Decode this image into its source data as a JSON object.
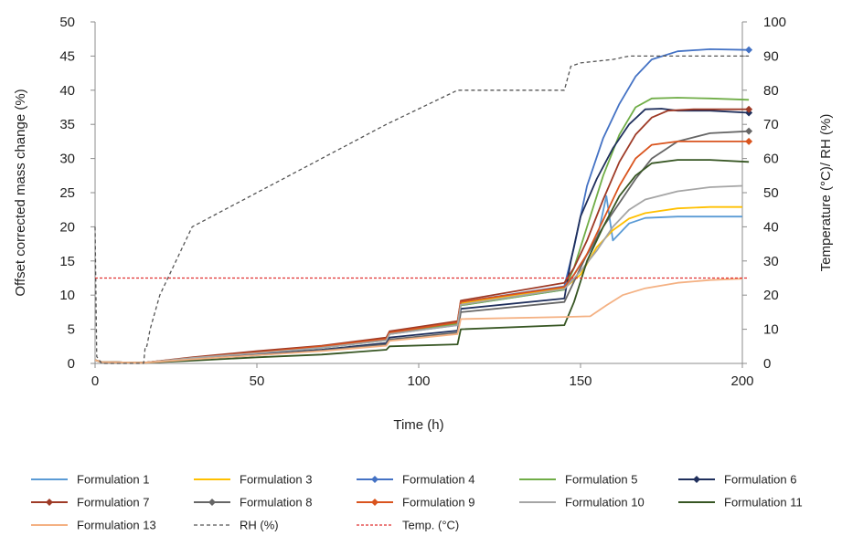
{
  "chart_data": {
    "type": "line",
    "xlabel": "Time (h)",
    "ylabel": "Offset corrected mass change (%)",
    "y2label": "Temperature (°C)/ RH (%)",
    "xlim": [
      0,
      200
    ],
    "ylim": [
      0,
      50
    ],
    "y2lim": [
      0,
      100
    ],
    "x_ticks": [
      0,
      50,
      100,
      150,
      200
    ],
    "y_ticks": [
      0,
      5,
      10,
      15,
      20,
      25,
      30,
      35,
      40,
      45,
      50
    ],
    "y2_ticks": [
      0,
      10,
      20,
      30,
      40,
      50,
      60,
      70,
      80,
      90,
      100
    ],
    "grid": false,
    "legend_position": "bottom",
    "series": [
      {
        "name": "Formulation 1",
        "color": "#5b9bd5",
        "marker": "none",
        "axis": "left",
        "x": [
          0,
          2,
          15,
          30,
          50,
          70,
          90,
          91,
          112,
          113,
          145,
          150,
          155,
          158,
          160,
          165,
          170,
          180,
          190,
          200
        ],
        "y": [
          0.5,
          0.2,
          0.1,
          0.8,
          1.5,
          2.3,
          3.4,
          4.3,
          5.6,
          8.5,
          10.8,
          14.5,
          18.0,
          24.5,
          18.0,
          20.5,
          21.3,
          21.5,
          21.5,
          21.5
        ]
      },
      {
        "name": "Formulation 3",
        "color": "#ffc000",
        "marker": "none",
        "axis": "left",
        "x": [
          0,
          2,
          15,
          30,
          50,
          70,
          90,
          91,
          112,
          113,
          145,
          150,
          155,
          160,
          165,
          170,
          180,
          190,
          200
        ],
        "y": [
          0.5,
          0.2,
          0.1,
          0.8,
          1.5,
          2.4,
          3.5,
          4.4,
          5.8,
          8.8,
          11.0,
          13.0,
          17.0,
          19.5,
          21.2,
          22.0,
          22.7,
          22.9,
          22.9
        ]
      },
      {
        "name": "Formulation 4",
        "color": "#4472c4",
        "marker": "diamond",
        "axis": "left",
        "x": [
          0,
          2,
          15,
          30,
          50,
          70,
          90,
          91,
          112,
          113,
          145,
          148,
          152,
          157,
          162,
          167,
          172,
          180,
          190,
          202
        ],
        "y": [
          0.5,
          0.2,
          0.1,
          0.8,
          1.6,
          2.5,
          3.6,
          4.5,
          6.0,
          9.0,
          11.3,
          17.0,
          26.0,
          33.0,
          38.0,
          42.0,
          44.5,
          45.7,
          46.0,
          45.9
        ]
      },
      {
        "name": "Formulation 5",
        "color": "#70ad47",
        "marker": "none",
        "axis": "left",
        "x": [
          0,
          2,
          15,
          30,
          50,
          70,
          90,
          91,
          112,
          113,
          145,
          148,
          152,
          157,
          162,
          167,
          172,
          180,
          190,
          202
        ],
        "y": [
          0.5,
          0.2,
          0.1,
          0.8,
          1.5,
          2.3,
          3.4,
          4.3,
          5.8,
          8.5,
          10.8,
          14.0,
          20.0,
          27.5,
          33.5,
          37.5,
          38.8,
          38.9,
          38.8,
          38.6
        ]
      },
      {
        "name": "Formulation 6",
        "color": "#1f2f5c",
        "marker": "diamond",
        "axis": "left",
        "x": [
          0,
          2,
          15,
          30,
          50,
          70,
          90,
          91,
          112,
          113,
          145,
          147,
          150,
          155,
          160,
          165,
          170,
          175,
          180,
          190,
          202
        ],
        "y": [
          0.5,
          0.2,
          0.1,
          0.7,
          1.3,
          2.0,
          3.0,
          3.8,
          4.8,
          8.0,
          9.5,
          15.0,
          21.5,
          27.0,
          31.5,
          35.0,
          37.2,
          37.3,
          37.0,
          37.0,
          36.7
        ]
      },
      {
        "name": "Formulation 7",
        "color": "#9e3a26",
        "marker": "diamond",
        "axis": "left",
        "x": [
          0,
          2,
          15,
          30,
          50,
          70,
          90,
          91,
          112,
          113,
          145,
          148,
          152,
          157,
          162,
          167,
          172,
          177,
          185,
          202
        ],
        "y": [
          0.5,
          0.2,
          0.1,
          0.9,
          1.8,
          2.6,
          3.8,
          4.7,
          6.2,
          9.2,
          11.8,
          14.0,
          18.0,
          24.0,
          29.5,
          33.5,
          36.0,
          37.0,
          37.2,
          37.2
        ]
      },
      {
        "name": "Formulation 8",
        "color": "#666666",
        "marker": "diamond",
        "axis": "left",
        "x": [
          0,
          2,
          15,
          30,
          50,
          70,
          90,
          91,
          112,
          113,
          145,
          148,
          152,
          157,
          162,
          167,
          172,
          180,
          190,
          202
        ],
        "y": [
          0.5,
          0.2,
          0.1,
          0.6,
          1.2,
          1.9,
          2.8,
          3.5,
          4.5,
          7.5,
          9.0,
          12.0,
          16.0,
          20.0,
          23.5,
          27.0,
          30.0,
          32.5,
          33.7,
          34.0
        ]
      },
      {
        "name": "Formulation 9",
        "color": "#d9541e",
        "marker": "diamond",
        "axis": "left",
        "x": [
          0,
          2,
          15,
          30,
          50,
          70,
          90,
          91,
          112,
          113,
          145,
          148,
          152,
          157,
          162,
          167,
          172,
          180,
          190,
          202
        ],
        "y": [
          0.5,
          0.2,
          0.1,
          0.8,
          1.6,
          2.5,
          3.6,
          4.5,
          6.0,
          9.0,
          11.2,
          13.0,
          16.0,
          21.0,
          26.0,
          30.0,
          32.0,
          32.5,
          32.5,
          32.5
        ]
      },
      {
        "name": "Formulation 10",
        "color": "#a5a5a5",
        "marker": "none",
        "axis": "left",
        "x": [
          0,
          2,
          15,
          30,
          50,
          70,
          90,
          91,
          112,
          113,
          145,
          150,
          155,
          160,
          165,
          170,
          180,
          190,
          200
        ],
        "y": [
          0.5,
          0.2,
          0.1,
          0.8,
          1.5,
          2.3,
          3.4,
          4.3,
          5.6,
          8.6,
          10.9,
          13.5,
          16.5,
          20.0,
          22.5,
          24.0,
          25.2,
          25.8,
          26.0
        ]
      },
      {
        "name": "Formulation 11",
        "color": "#375623",
        "marker": "none",
        "axis": "left",
        "x": [
          0,
          2,
          15,
          30,
          50,
          70,
          90,
          91,
          112,
          113,
          145,
          148,
          152,
          157,
          162,
          167,
          172,
          180,
          190,
          202
        ],
        "y": [
          0.5,
          0.2,
          0.1,
          0.4,
          0.9,
          1.3,
          2.0,
          2.5,
          2.8,
          5.0,
          5.6,
          9.0,
          15.0,
          20.0,
          24.5,
          27.5,
          29.3,
          29.8,
          29.8,
          29.5
        ]
      },
      {
        "name": "Formulation 13",
        "color": "#f4b183",
        "marker": "none",
        "axis": "left",
        "x": [
          0,
          2,
          15,
          30,
          50,
          70,
          90,
          91,
          112,
          113,
          145,
          153,
          158,
          163,
          170,
          180,
          190,
          200
        ],
        "y": [
          0.5,
          0.2,
          0.1,
          0.6,
          1.2,
          1.8,
          2.6,
          3.3,
          4.3,
          6.5,
          6.8,
          6.9,
          8.5,
          10.0,
          11.0,
          11.8,
          12.2,
          12.4
        ]
      },
      {
        "name": "RH (%)",
        "color": "#555555",
        "marker": "none",
        "dash": "dashed",
        "axis": "right",
        "x": [
          0,
          0.5,
          2,
          15,
          15.5,
          16,
          17,
          17,
          20,
          20,
          25,
          25,
          30,
          30,
          50,
          50,
          70,
          70,
          90,
          90,
          112,
          112,
          145,
          147,
          150,
          150,
          160,
          165,
          175,
          202
        ],
        "y": [
          40,
          2,
          0,
          0,
          5,
          5,
          10,
          10,
          20,
          20,
          30,
          30,
          40,
          40,
          50,
          50,
          60,
          60,
          70,
          70,
          80,
          80,
          80,
          87,
          88,
          88,
          89,
          90,
          90,
          90
        ]
      },
      {
        "name": "Temp. (°C)",
        "color": "#e03030",
        "marker": "none",
        "dash": "dotted",
        "axis": "right",
        "x": [
          0,
          202
        ],
        "y": [
          25,
          25
        ]
      }
    ]
  }
}
